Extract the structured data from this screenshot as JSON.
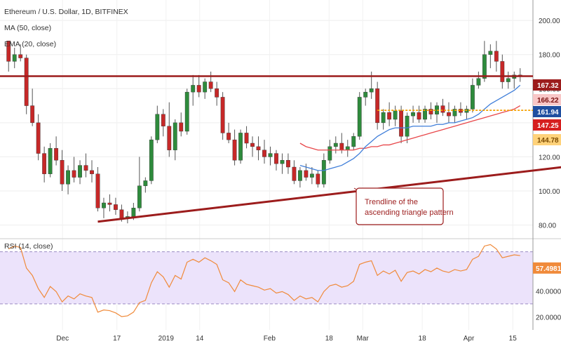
{
  "chart_data": [
    {
      "type": "candlestick",
      "title": "Ethereum / U.S. Dollar, 1D, BITFINEX",
      "indicators": [
        "MA (50, close)",
        "EMA (20, close)"
      ],
      "x_labels": [
        "Dec",
        "17",
        "2019",
        "14",
        "Feb",
        "18",
        "Mar",
        "18",
        "Apr",
        "15"
      ],
      "y_ticks": [
        80,
        100,
        120,
        140,
        160,
        180,
        200
      ],
      "ylim": [
        72,
        212
      ],
      "grid": true,
      "price_tags": [
        {
          "value": "167.32",
          "color": "#9c1c1c",
          "text_color": "#ffffff"
        },
        {
          "value": "166.22",
          "color": "#f8c7c7",
          "text_color": "#7a1010"
        },
        {
          "value": "161.94",
          "color": "#1f4fa0",
          "text_color": "#ffffff"
        },
        {
          "value": "147.25",
          "color": "#d61f1f",
          "text_color": "#ffffff"
        },
        {
          "value": "144.78",
          "color": "#ffd27a",
          "text_color": "#7a4a00"
        }
      ],
      "resistance_level": 167.3,
      "support_level": 147.3,
      "trendline": {
        "start": {
          "day": 15,
          "price": 82
        },
        "end": {
          "day": 120,
          "price": 125
        }
      },
      "annotation": "Trendline of the ascending triangle pattern",
      "ohlc": [
        [
          188,
          188,
          170,
          176
        ],
        [
          176,
          184,
          172,
          180
        ],
        [
          180,
          186,
          176,
          178
        ],
        [
          178,
          180,
          145,
          150
        ],
        [
          150,
          160,
          138,
          140
        ],
        [
          140,
          145,
          118,
          122
        ],
        [
          122,
          126,
          105,
          110
        ],
        [
          110,
          128,
          108,
          125
        ],
        [
          125,
          132,
          115,
          118
        ],
        [
          118,
          124,
          100,
          104
        ],
        [
          104,
          115,
          98,
          112
        ],
        [
          112,
          120,
          105,
          108
        ],
        [
          108,
          118,
          104,
          115
        ],
        [
          115,
          122,
          108,
          112
        ],
        [
          112,
          118,
          105,
          110
        ],
        [
          110,
          114,
          88,
          90
        ],
        [
          90,
          96,
          84,
          93
        ],
        [
          93,
          98,
          88,
          92
        ],
        [
          92,
          96,
          86,
          89
        ],
        [
          89,
          92,
          82,
          84
        ],
        [
          84,
          88,
          81,
          85
        ],
        [
          85,
          93,
          83,
          90
        ],
        [
          90,
          120,
          88,
          103
        ],
        [
          103,
          108,
          99,
          106
        ],
        [
          106,
          132,
          104,
          130
        ],
        [
          130,
          150,
          128,
          145
        ],
        [
          145,
          148,
          132,
          138
        ],
        [
          138,
          152,
          120,
          124
        ],
        [
          124,
          142,
          118,
          140
        ],
        [
          140,
          146,
          132,
          135
        ],
        [
          135,
          160,
          133,
          158
        ],
        [
          158,
          168,
          150,
          162
        ],
        [
          162,
          168,
          155,
          158
        ],
        [
          158,
          166,
          154,
          164
        ],
        [
          164,
          170,
          158,
          160
        ],
        [
          160,
          164,
          150,
          155
        ],
        [
          155,
          158,
          130,
          134
        ],
        [
          134,
          140,
          128,
          130
        ],
        [
          130,
          136,
          115,
          118
        ],
        [
          118,
          136,
          116,
          134
        ],
        [
          134,
          138,
          125,
          128
        ],
        [
          128,
          132,
          120,
          126
        ],
        [
          126,
          132,
          118,
          124
        ],
        [
          124,
          130,
          116,
          120
        ],
        [
          120,
          126,
          115,
          122
        ],
        [
          122,
          124,
          112,
          116
        ],
        [
          116,
          122,
          110,
          118
        ],
        [
          118,
          122,
          110,
          114
        ],
        [
          114,
          118,
          104,
          106
        ],
        [
          106,
          114,
          102,
          112
        ],
        [
          112,
          116,
          106,
          108
        ],
        [
          108,
          114,
          104,
          110
        ],
        [
          110,
          112,
          102,
          104
        ],
        [
          104,
          122,
          102,
          118
        ],
        [
          118,
          130,
          116,
          126
        ],
        [
          126,
          132,
          122,
          128
        ],
        [
          128,
          134,
          122,
          124
        ],
        [
          124,
          130,
          120,
          126
        ],
        [
          126,
          134,
          124,
          132
        ],
        [
          132,
          158,
          130,
          155
        ],
        [
          155,
          160,
          150,
          158
        ],
        [
          158,
          170,
          154,
          160
        ],
        [
          160,
          164,
          136,
          140
        ],
        [
          140,
          148,
          136,
          146
        ],
        [
          146,
          152,
          138,
          142
        ],
        [
          142,
          150,
          138,
          147
        ],
        [
          147,
          150,
          128,
          132
        ],
        [
          132,
          146,
          128,
          144
        ],
        [
          144,
          150,
          140,
          146
        ],
        [
          146,
          150,
          140,
          142
        ],
        [
          142,
          150,
          140,
          148
        ],
        [
          148,
          152,
          142,
          145
        ],
        [
          145,
          152,
          140,
          150
        ],
        [
          150,
          154,
          144,
          146
        ],
        [
          146,
          152,
          140,
          144
        ],
        [
          144,
          150,
          140,
          148
        ],
        [
          148,
          152,
          144,
          146
        ],
        [
          146,
          150,
          142,
          148
        ],
        [
          148,
          166,
          146,
          162
        ],
        [
          162,
          170,
          160,
          166
        ],
        [
          166,
          188,
          164,
          180
        ],
        [
          180,
          186,
          172,
          182
        ],
        [
          182,
          188,
          170,
          176
        ],
        [
          176,
          180,
          160,
          164
        ],
        [
          164,
          170,
          160,
          166
        ],
        [
          166,
          170,
          160,
          168
        ],
        [
          168,
          172,
          164,
          167
        ]
      ],
      "series": [
        {
          "name": "MA (50, close)",
          "color": "#e8474a",
          "values": [
            null,
            null,
            null,
            null,
            null,
            null,
            null,
            null,
            null,
            null,
            null,
            null,
            null,
            null,
            null,
            null,
            null,
            null,
            null,
            null,
            null,
            null,
            null,
            null,
            null,
            null,
            null,
            null,
            null,
            null,
            null,
            null,
            null,
            null,
            null,
            null,
            null,
            null,
            null,
            null,
            null,
            null,
            null,
            null,
            null,
            null,
            null,
            null,
            null,
            128,
            126,
            125,
            124,
            124,
            124,
            124,
            124,
            124,
            124,
            125,
            125,
            126,
            126,
            127,
            127,
            128,
            129,
            130,
            131,
            132,
            133,
            134,
            135,
            136,
            137,
            138,
            139,
            140,
            141,
            142,
            143,
            144,
            145,
            146,
            147,
            148,
            150
          ]
        },
        {
          "name": "EMA (20, close)",
          "color": "#3f7ed9",
          "values": [
            null,
            null,
            null,
            null,
            null,
            null,
            null,
            null,
            null,
            null,
            null,
            null,
            null,
            null,
            null,
            null,
            null,
            null,
            null,
            null,
            null,
            null,
            null,
            null,
            null,
            null,
            null,
            null,
            null,
            null,
            null,
            null,
            null,
            null,
            null,
            null,
            null,
            null,
            null,
            null,
            null,
            null,
            null,
            null,
            null,
            null,
            null,
            null,
            null,
            115,
            114,
            113,
            112,
            112,
            113,
            114,
            115,
            117,
            119,
            122,
            126,
            129,
            132,
            134,
            136,
            137,
            137,
            137,
            138,
            138,
            138,
            138,
            139,
            139,
            140,
            140,
            141,
            142,
            143,
            145,
            148,
            151,
            153,
            155,
            157,
            159,
            162
          ]
        }
      ]
    },
    {
      "type": "line",
      "title": "RSI (14, close)",
      "y_ticks_labels": [
        "20.0000",
        "40.0000"
      ],
      "last_value_tag": "57.4981",
      "band": [
        30,
        70
      ],
      "ylim": [
        10,
        80
      ]
    }
  ]
}
